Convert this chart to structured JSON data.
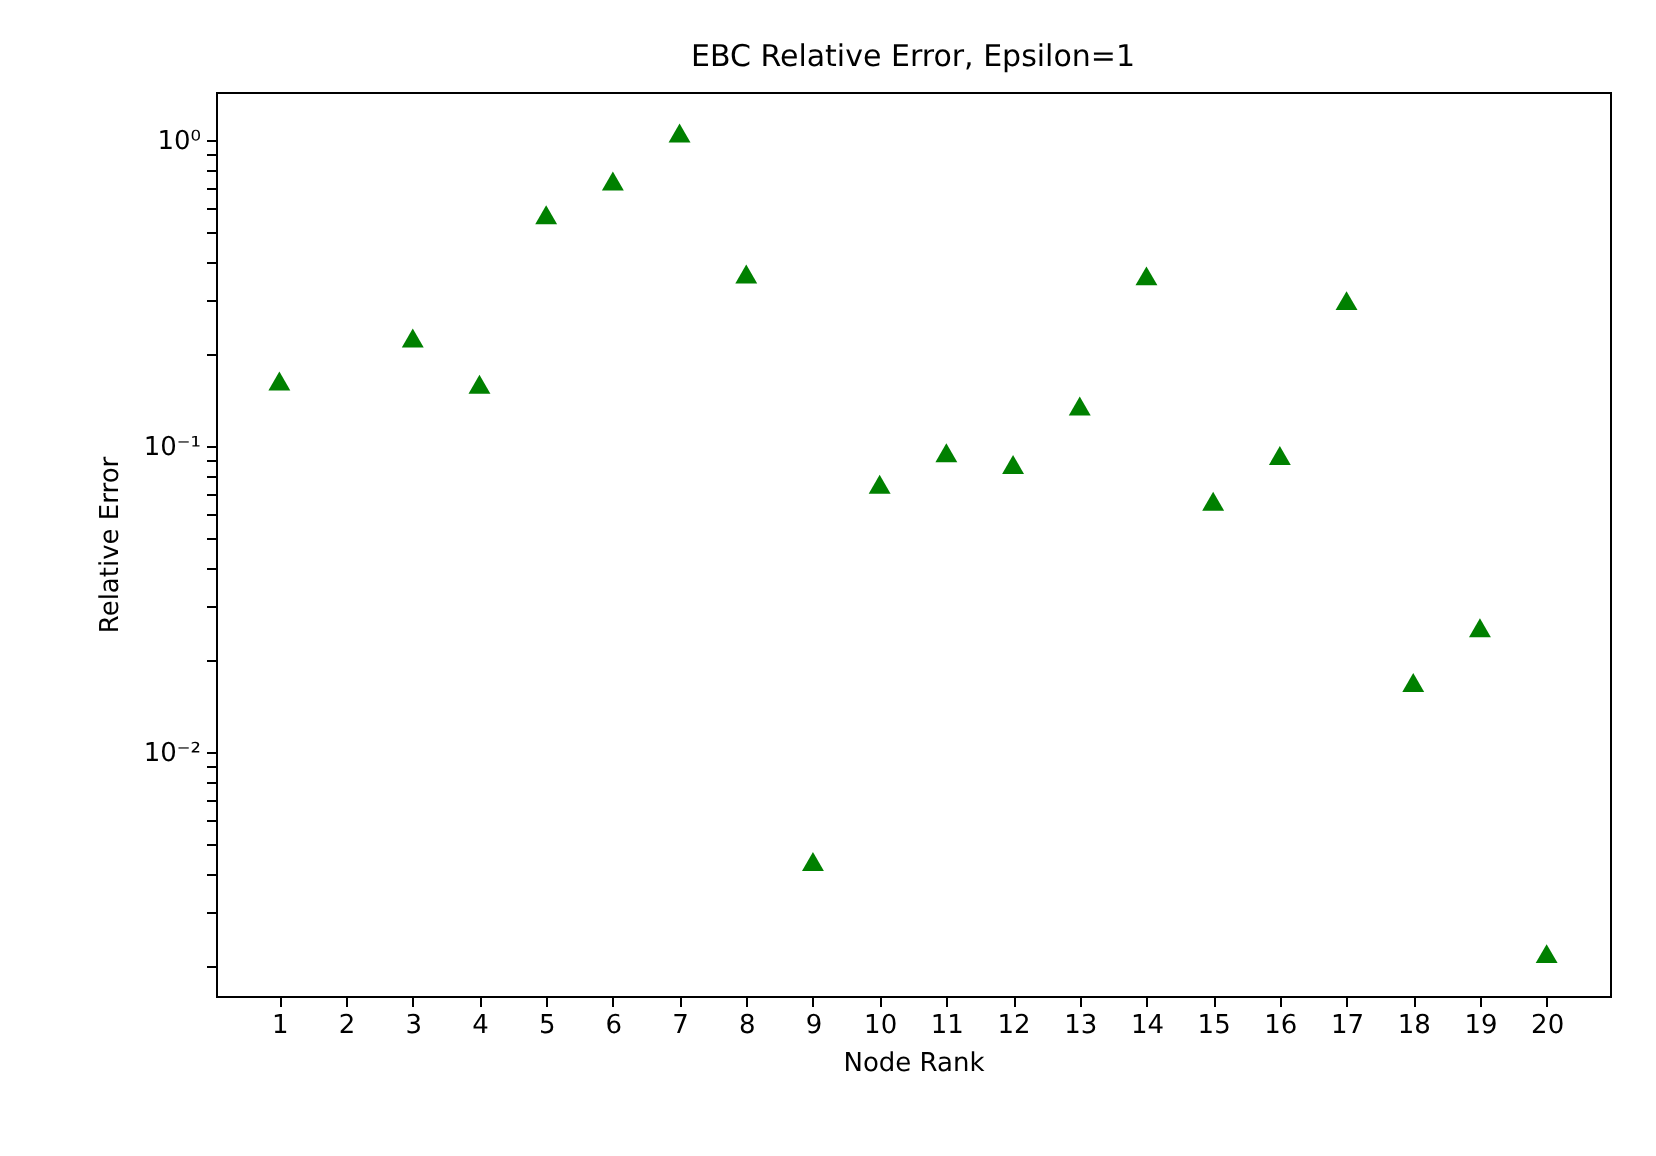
{
  "chart_data": {
    "type": "scatter",
    "title": "EBC Relative Error, Epsilon=1",
    "xlabel": "Node Rank",
    "ylabel": "Relative Error",
    "x": [
      1,
      2,
      3,
      4,
      5,
      6,
      7,
      8,
      9,
      10,
      11,
      12,
      13,
      14,
      15,
      16,
      17,
      18,
      19,
      20
    ],
    "series": [
      {
        "color": "#008000",
        "marker": "triangle",
        "values": [
          0.163,
          null,
          0.225,
          0.159,
          0.568,
          0.733,
          1.05,
          0.364,
          0.0044,
          0.075,
          0.095,
          0.087,
          0.135,
          0.359,
          0.066,
          0.093,
          0.298,
          0.0169,
          0.0255,
          0.0022
        ]
      }
    ],
    "log": "y",
    "grid": false,
    "xlim": [
      0.05,
      20.95
    ],
    "xticks": [
      1,
      2,
      3,
      4,
      5,
      6,
      7,
      8,
      9,
      10,
      11,
      12,
      13,
      14,
      15,
      16,
      17,
      18,
      19,
      20
    ],
    "ylim": [
      0.0016,
      1.43
    ],
    "yticks": [
      {
        "value": 0.002,
        "label": null
      },
      {
        "value": 0.003,
        "label": null
      },
      {
        "value": 0.004,
        "label": null
      },
      {
        "value": 0.005,
        "label": null
      },
      {
        "value": 0.006,
        "label": null
      },
      {
        "value": 0.007,
        "label": null
      },
      {
        "value": 0.008,
        "label": null
      },
      {
        "value": 0.009,
        "label": null
      },
      {
        "value": 0.01,
        "label": "10⁻²"
      },
      {
        "value": 0.02,
        "label": null
      },
      {
        "value": 0.03,
        "label": null
      },
      {
        "value": 0.04,
        "label": null
      },
      {
        "value": 0.05,
        "label": null
      },
      {
        "value": 0.06,
        "label": null
      },
      {
        "value": 0.07,
        "label": null
      },
      {
        "value": 0.08,
        "label": null
      },
      {
        "value": 0.09,
        "label": null
      },
      {
        "value": 0.1,
        "label": "10⁻¹"
      },
      {
        "value": 0.2,
        "label": null
      },
      {
        "value": 0.3,
        "label": null
      },
      {
        "value": 0.4,
        "label": null
      },
      {
        "value": 0.5,
        "label": null
      },
      {
        "value": 0.6,
        "label": null
      },
      {
        "value": 0.7,
        "label": null
      },
      {
        "value": 0.8,
        "label": null
      },
      {
        "value": 0.9,
        "label": null
      },
      {
        "value": 1,
        "label": "10⁰"
      }
    ]
  }
}
